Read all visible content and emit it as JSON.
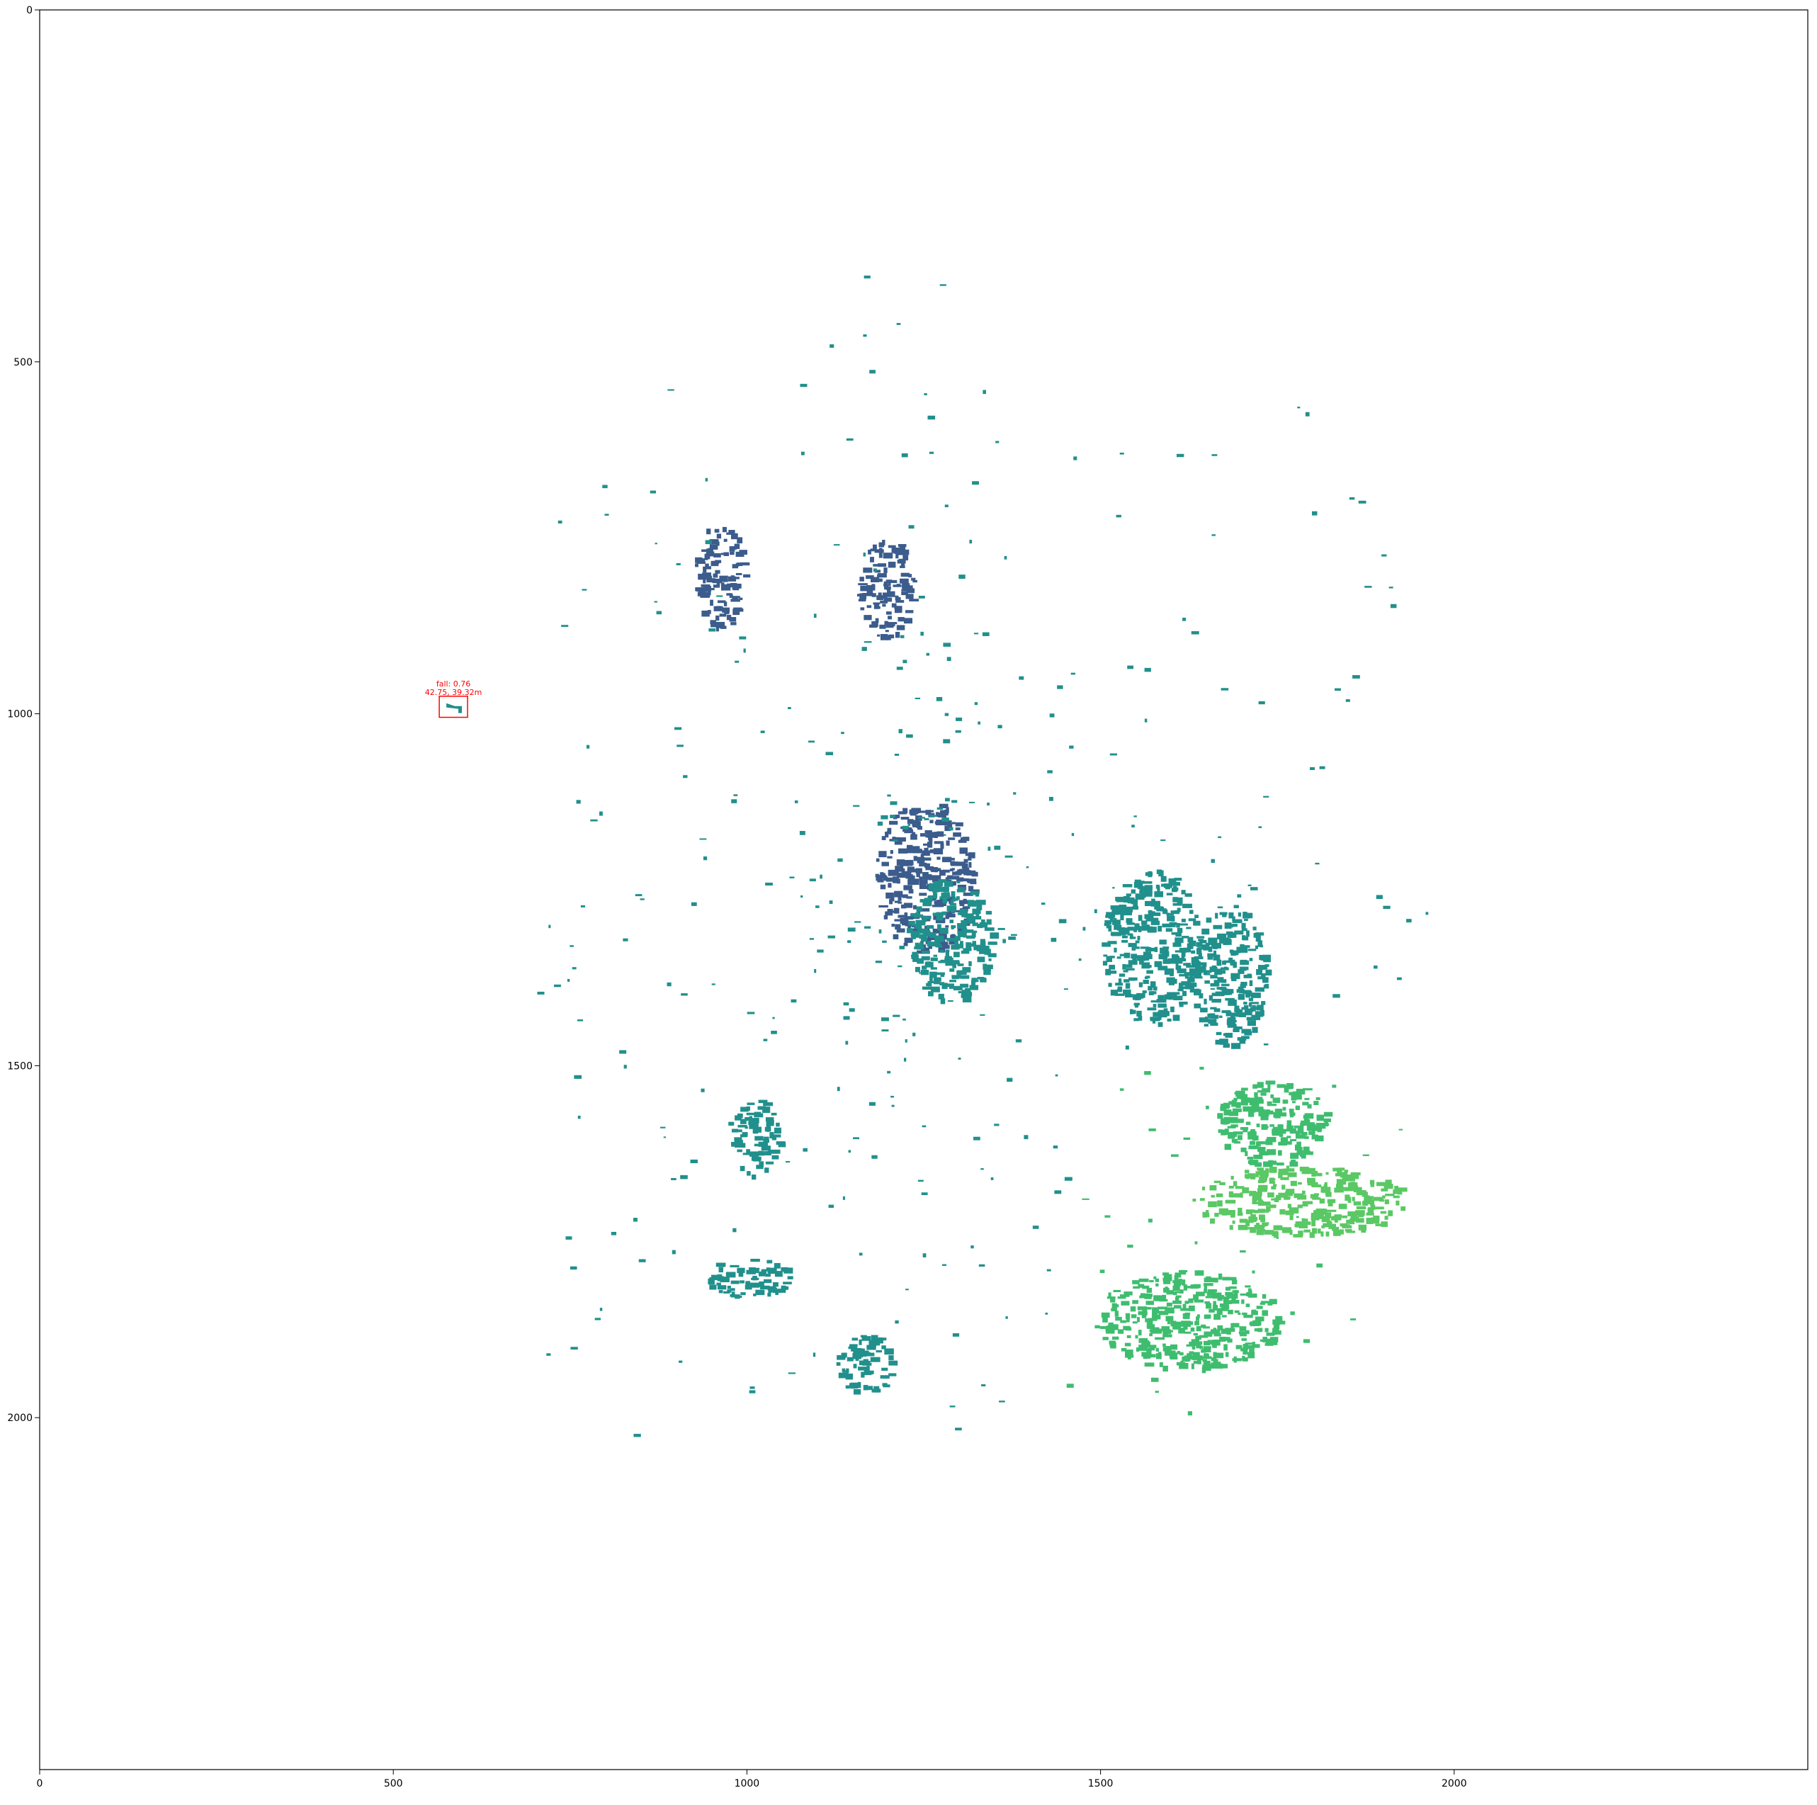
{
  "figure": {
    "kind": "radar-image-plot",
    "x_ticks": [
      "0",
      "500",
      "1000",
      "1500",
      "2000"
    ],
    "y_ticks": [
      "0",
      "500",
      "1000",
      "1500",
      "2000"
    ],
    "x_range": [
      0,
      2500
    ],
    "y_range": [
      0,
      2500
    ],
    "y_inverted": true,
    "colormap": "viridis-like",
    "colors": {
      "dark": "#3b5c8c",
      "mid": "#21908c",
      "light": "#3fbd6f",
      "bright": "#5ac864",
      "detection_box": "#ff0000"
    }
  },
  "detection": {
    "label_line1": "fall: 0.76",
    "label_line2": "42.75, 39.32m",
    "box_data": {
      "x0": 565,
      "y0": 975,
      "x1": 605,
      "y1": 1005
    }
  },
  "echo_regions": [
    {
      "name": "north-west-cluster",
      "x": 960,
      "y": 800,
      "rx": 35,
      "ry": 80,
      "tone": "dark"
    },
    {
      "name": "north-blob",
      "x": 1195,
      "y": 820,
      "rx": 40,
      "ry": 70,
      "tone": "dark"
    },
    {
      "name": "center-cross",
      "x": 1250,
      "y": 1230,
      "rx": 70,
      "ry": 110,
      "tone": "dark"
    },
    {
      "name": "center-south",
      "x": 1285,
      "y": 1320,
      "rx": 60,
      "ry": 90,
      "tone": "mid"
    },
    {
      "name": "east-band-1",
      "x": 1570,
      "y": 1330,
      "rx": 70,
      "ry": 110,
      "tone": "mid"
    },
    {
      "name": "east-band-2",
      "x": 1680,
      "y": 1370,
      "rx": 55,
      "ry": 100,
      "tone": "mid"
    },
    {
      "name": "south-west-1",
      "x": 1010,
      "y": 1600,
      "rx": 35,
      "ry": 55,
      "tone": "mid"
    },
    {
      "name": "south-west-2",
      "x": 1000,
      "y": 1800,
      "rx": 60,
      "ry": 30,
      "tone": "mid"
    },
    {
      "name": "south-west-3",
      "x": 1165,
      "y": 1920,
      "rx": 40,
      "ry": 45,
      "tone": "mid"
    },
    {
      "name": "south-east-1",
      "x": 1740,
      "y": 1580,
      "rx": 80,
      "ry": 60,
      "tone": "light"
    },
    {
      "name": "south-east-2",
      "x": 1780,
      "y": 1690,
      "rx": 150,
      "ry": 50,
      "tone": "bright"
    },
    {
      "name": "south-east-3",
      "x": 1620,
      "y": 1860,
      "rx": 130,
      "ry": 70,
      "tone": "light"
    }
  ]
}
